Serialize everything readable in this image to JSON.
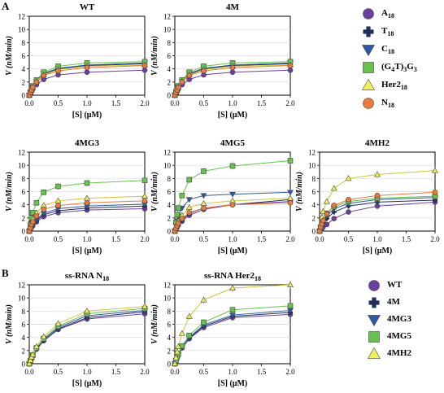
{
  "figure": {
    "panel_labels": [
      "A",
      "B"
    ],
    "legend_top": [
      {
        "label": "A",
        "sub": "18",
        "color": "#6b3fa0",
        "marker": "circle"
      },
      {
        "label": "T",
        "sub": "18",
        "color": "#1f2f57",
        "marker": "cross"
      },
      {
        "label": "C",
        "sub": "18",
        "color": "#2f5aa3",
        "marker": "triangle-down"
      },
      {
        "label": "(G",
        "sub": "4",
        "label2": "T)",
        "sub2": "3",
        "label3": "G",
        "sub3": "3",
        "color": "#66c14e",
        "marker": "square"
      },
      {
        "label": "Her2",
        "sub": "18",
        "color": "#f2f05a",
        "marker": "triangle-up"
      },
      {
        "label": "N",
        "sub": "18",
        "color": "#ea7b3c",
        "marker": "circle"
      }
    ],
    "legend_bottom": [
      {
        "label": "WT",
        "color": "#6b3fa0",
        "marker": "circle"
      },
      {
        "label": "4M",
        "color": "#1f2f57",
        "marker": "cross"
      },
      {
        "label": "4MG3",
        "color": "#2f5aa3",
        "marker": "triangle-down"
      },
      {
        "label": "4MG5",
        "color": "#66c14e",
        "marker": "square"
      },
      {
        "label": "4MH2",
        "color": "#f2f05a",
        "marker": "triangle-up"
      }
    ]
  },
  "chart_data": [
    {
      "type": "line",
      "title": "WT",
      "xlabel": "[S] (μM)",
      "ylabel": "V (nM/min)",
      "xlim": [
        0,
        2
      ],
      "ylim": [
        0,
        12
      ],
      "xticks": [
        "0.0",
        "0.5",
        "1.0",
        "1.5",
        "2.0"
      ],
      "yticks": [
        "0",
        "2",
        "4",
        "6",
        "8",
        "10",
        "12"
      ],
      "x": [
        0,
        0.02,
        0.04,
        0.06,
        0.125,
        0.25,
        0.5,
        1.0,
        2.0
      ],
      "series": [
        {
          "name": "A18",
          "color": "#6b3fa0",
          "marker": "circle",
          "values": [
            0,
            0.3,
            0.6,
            0.9,
            1.6,
            2.4,
            3.1,
            3.5,
            3.8
          ]
        },
        {
          "name": "T18",
          "color": "#1f2f57",
          "marker": "cross",
          "values": [
            0,
            0.4,
            0.8,
            1.2,
            2.1,
            3.2,
            4.0,
            4.5,
            4.8
          ]
        },
        {
          "name": "C18",
          "color": "#2f5aa3",
          "marker": "triangle-down",
          "values": [
            0,
            0.4,
            0.8,
            1.2,
            2.1,
            3.3,
            4.1,
            4.6,
            4.9
          ]
        },
        {
          "name": "(G4T)3G3",
          "color": "#66c14e",
          "marker": "square",
          "values": [
            0,
            0.5,
            0.9,
            1.4,
            2.3,
            3.5,
            4.4,
            4.9,
            5.1
          ]
        },
        {
          "name": "Her218",
          "color": "#f2f05a",
          "marker": "triangle-up",
          "values": [
            0,
            0.4,
            0.8,
            1.3,
            2.1,
            3.1,
            3.9,
            4.4,
            4.6
          ]
        },
        {
          "name": "N18",
          "color": "#ea7b3c",
          "marker": "circle",
          "values": [
            0,
            0.4,
            0.8,
            1.2,
            2.0,
            3.0,
            3.7,
            4.2,
            4.5
          ]
        }
      ]
    },
    {
      "type": "line",
      "title": "4M",
      "xlabel": "[S] (μM)",
      "ylabel": "V (nM/min)",
      "xlim": [
        0,
        2
      ],
      "ylim": [
        0,
        12
      ],
      "xticks": [
        "0.0",
        "0.5",
        "1.0",
        "1.5",
        "2.0"
      ],
      "yticks": [
        "0",
        "2",
        "4",
        "6",
        "8",
        "10",
        "12"
      ],
      "x": [
        0,
        0.02,
        0.04,
        0.06,
        0.125,
        0.25,
        0.5,
        1.0,
        2.0
      ],
      "series": [
        {
          "name": "A18",
          "color": "#6b3fa0",
          "marker": "circle",
          "values": [
            0,
            0.3,
            0.6,
            0.9,
            1.6,
            2.4,
            3.1,
            3.5,
            3.8
          ]
        },
        {
          "name": "T18",
          "color": "#1f2f57",
          "marker": "cross",
          "values": [
            0,
            0.4,
            0.8,
            1.2,
            2.1,
            3.2,
            4.0,
            4.5,
            4.8
          ]
        },
        {
          "name": "C18",
          "color": "#2f5aa3",
          "marker": "triangle-down",
          "values": [
            0,
            0.4,
            0.8,
            1.2,
            2.1,
            3.3,
            4.1,
            4.6,
            4.9
          ]
        },
        {
          "name": "(G4T)3G3",
          "color": "#66c14e",
          "marker": "square",
          "values": [
            0,
            0.5,
            0.9,
            1.4,
            2.3,
            3.5,
            4.4,
            4.9,
            5.1
          ]
        },
        {
          "name": "Her218",
          "color": "#f2f05a",
          "marker": "triangle-up",
          "values": [
            0,
            0.4,
            0.8,
            1.3,
            2.1,
            3.1,
            3.9,
            4.4,
            4.6
          ]
        },
        {
          "name": "N18",
          "color": "#ea7b3c",
          "marker": "circle",
          "values": [
            0,
            0.4,
            0.8,
            1.2,
            2.0,
            3.0,
            3.7,
            4.2,
            4.5
          ]
        }
      ]
    },
    {
      "type": "line",
      "title": "4MG3",
      "xlabel": "[S] (μM)",
      "ylabel": "V (nM/min)",
      "xlim": [
        0,
        2
      ],
      "ylim": [
        0,
        12
      ],
      "xticks": [
        "0.0",
        "0.5",
        "1.0",
        "1.5",
        "2.0"
      ],
      "yticks": [
        "0",
        "2",
        "4",
        "6",
        "8",
        "10",
        "12"
      ],
      "x": [
        0,
        0.02,
        0.04,
        0.06,
        0.125,
        0.25,
        0.5,
        1.0,
        2.0
      ],
      "series": [
        {
          "name": "A18",
          "color": "#6b3fa0",
          "marker": "circle",
          "values": [
            0,
            0.3,
            0.6,
            0.8,
            1.4,
            2.2,
            2.8,
            3.2,
            3.4
          ]
        },
        {
          "name": "T18",
          "color": "#1f2f57",
          "marker": "cross",
          "values": [
            0,
            0.3,
            0.7,
            1.0,
            1.6,
            2.5,
            3.1,
            3.5,
            3.8
          ]
        },
        {
          "name": "C18",
          "color": "#2f5aa3",
          "marker": "triangle-down",
          "values": [
            0,
            0.4,
            0.7,
            1.1,
            1.8,
            2.7,
            3.4,
            3.8,
            4.1
          ]
        },
        {
          "name": "(G4T)3G3",
          "color": "#66c14e",
          "marker": "square",
          "values": [
            0,
            1.0,
            2.0,
            2.8,
            4.3,
            5.9,
            6.8,
            7.3,
            7.7
          ]
        },
        {
          "name": "Her218",
          "color": "#f2f05a",
          "marker": "triangle-up",
          "values": [
            0,
            0.6,
            1.2,
            1.8,
            2.8,
            3.9,
            4.6,
            5.0,
            5.3
          ]
        },
        {
          "name": "N18",
          "color": "#ea7b3c",
          "marker": "circle",
          "values": [
            0,
            0.5,
            1.0,
            1.4,
            2.3,
            3.3,
            3.9,
            4.3,
            4.6
          ]
        }
      ]
    },
    {
      "type": "line",
      "title": "4MG5",
      "xlabel": "[S] (μM)",
      "ylabel": "V (nM/min)",
      "xlim": [
        0,
        2
      ],
      "ylim": [
        0,
        12
      ],
      "xticks": [
        "0.0",
        "0.5",
        "1.0",
        "1.5",
        "2.0"
      ],
      "yticks": [
        "0",
        "2",
        "4",
        "6",
        "8",
        "10",
        "12"
      ],
      "x": [
        0,
        0.02,
        0.04,
        0.06,
        0.125,
        0.25,
        0.5,
        1.0,
        2.0
      ],
      "series": [
        {
          "name": "A18",
          "color": "#6b3fa0",
          "marker": "circle",
          "values": [
            0,
            0.3,
            0.6,
            0.9,
            1.5,
            2.4,
            3.3,
            4.0,
            4.5
          ]
        },
        {
          "name": "T18",
          "color": "#1f2f57",
          "marker": "cross",
          "values": [
            0,
            0.3,
            0.6,
            1.0,
            1.7,
            2.7,
            3.5,
            4.0,
            4.8
          ]
        },
        {
          "name": "C18",
          "color": "#2f5aa3",
          "marker": "triangle-down",
          "values": [
            0,
            0.8,
            1.6,
            2.3,
            3.5,
            4.8,
            5.4,
            5.6,
            5.9
          ]
        },
        {
          "name": "(G4T)3G3",
          "color": "#66c14e",
          "marker": "square",
          "values": [
            0,
            1.3,
            2.5,
            3.5,
            5.4,
            7.8,
            9.1,
            9.9,
            10.7
          ]
        },
        {
          "name": "Her218",
          "color": "#f2f05a",
          "marker": "triangle-up",
          "values": [
            0,
            0.5,
            1.0,
            1.5,
            2.4,
            3.6,
            4.2,
            4.6,
            5.0
          ]
        },
        {
          "name": "N18",
          "color": "#ea7b3c",
          "marker": "circle",
          "values": [
            0,
            0.4,
            0.8,
            1.2,
            1.9,
            2.8,
            3.5,
            4.0,
            4.3
          ]
        }
      ]
    },
    {
      "type": "line",
      "title": "4MH2",
      "xlabel": "[S] (μM)",
      "ylabel": "V (nM/min)",
      "xlim": [
        0,
        2
      ],
      "ylim": [
        0,
        12
      ],
      "xticks": [
        "0.0",
        "0.5",
        "1.0",
        "1.5",
        "2.0"
      ],
      "yticks": [
        "0",
        "2",
        "4",
        "6",
        "8",
        "10",
        "12"
      ],
      "x": [
        0,
        0.02,
        0.04,
        0.06,
        0.125,
        0.25,
        0.5,
        1.0,
        2.0
      ],
      "series": [
        {
          "name": "A18",
          "color": "#6b3fa0",
          "marker": "circle",
          "values": [
            0,
            0.2,
            0.4,
            0.6,
            1.0,
            1.9,
            2.9,
            3.8,
            4.4
          ]
        },
        {
          "name": "T18",
          "color": "#1f2f57",
          "marker": "cross",
          "values": [
            0,
            0.4,
            0.8,
            1.2,
            1.9,
            2.9,
            3.8,
            4.4,
            4.7
          ]
        },
        {
          "name": "C18",
          "color": "#2f5aa3",
          "marker": "triangle-down",
          "values": [
            0,
            0.5,
            1.0,
            1.5,
            2.4,
            3.4,
            4.2,
            4.8,
            5.1
          ]
        },
        {
          "name": "(G4T)3G3",
          "color": "#66c14e",
          "marker": "square",
          "values": [
            0,
            0.6,
            1.2,
            1.7,
            2.7,
            3.7,
            4.5,
            5.0,
            5.3
          ]
        },
        {
          "name": "Her218",
          "color": "#f2f05a",
          "marker": "triangle-up",
          "values": [
            0,
            1.1,
            2.1,
            3.0,
            4.5,
            6.5,
            8.0,
            8.6,
            9.2
          ]
        },
        {
          "name": "N18",
          "color": "#ea7b3c",
          "marker": "circle",
          "values": [
            0,
            0.6,
            1.1,
            1.6,
            2.6,
            3.9,
            4.8,
            5.4,
            5.9
          ]
        }
      ]
    },
    {
      "type": "line",
      "title": "ss-RNA N18",
      "xlabel": "[S] (μM)",
      "ylabel": "V (nM/min)",
      "xlim": [
        0,
        2
      ],
      "ylim": [
        0,
        12
      ],
      "xticks": [
        "0.0",
        "0.5",
        "1.0",
        "1.5",
        "2.0"
      ],
      "yticks": [
        "0",
        "2",
        "4",
        "6",
        "8",
        "10",
        "12"
      ],
      "x": [
        0,
        0.02,
        0.04,
        0.06,
        0.125,
        0.25,
        0.5,
        1.0,
        2.0
      ],
      "series": [
        {
          "name": "WT",
          "color": "#6b3fa0",
          "marker": "circle",
          "values": [
            0,
            0.4,
            0.8,
            1.2,
            2.2,
            3.5,
            5.2,
            6.8,
            7.6
          ]
        },
        {
          "name": "4M",
          "color": "#1f2f57",
          "marker": "cross",
          "values": [
            0,
            0.4,
            0.8,
            1.2,
            2.2,
            3.5,
            5.3,
            7.0,
            7.9
          ]
        },
        {
          "name": "4MG3",
          "color": "#2f5aa3",
          "marker": "triangle-down",
          "values": [
            0,
            0.4,
            0.9,
            1.3,
            2.3,
            3.7,
            5.5,
            7.3,
            8.1
          ]
        },
        {
          "name": "4MG5",
          "color": "#66c14e",
          "marker": "square",
          "values": [
            0,
            0.5,
            0.9,
            1.3,
            2.4,
            3.8,
            5.7,
            7.6,
            8.4
          ]
        },
        {
          "name": "4MH2",
          "color": "#f2f05a",
          "marker": "triangle-up",
          "values": [
            0,
            0.5,
            1.0,
            1.4,
            2.6,
            4.1,
            6.1,
            8.0,
            8.7
          ]
        }
      ]
    },
    {
      "type": "line",
      "title": "ss-RNA Her218",
      "xlabel": "[S] (μM)",
      "ylabel": "V (nM/min)",
      "xlim": [
        0,
        2
      ],
      "ylim": [
        0,
        12
      ],
      "xticks": [
        "0.0",
        "0.5",
        "1.0",
        "1.5",
        "2.0"
      ],
      "yticks": [
        "0",
        "2",
        "4",
        "6",
        "8",
        "10",
        "12"
      ],
      "x": [
        0,
        0.02,
        0.04,
        0.06,
        0.125,
        0.25,
        0.5,
        1.0,
        2.0
      ],
      "series": [
        {
          "name": "WT",
          "color": "#6b3fa0",
          "marker": "circle",
          "values": [
            0,
            0.5,
            0.9,
            1.3,
            2.4,
            3.8,
            5.5,
            7.0,
            7.5
          ]
        },
        {
          "name": "4M",
          "color": "#1f2f57",
          "marker": "cross",
          "values": [
            0,
            0.5,
            0.9,
            1.4,
            2.5,
            3.9,
            5.7,
            7.2,
            7.8
          ]
        },
        {
          "name": "4MG3",
          "color": "#2f5aa3",
          "marker": "triangle-down",
          "values": [
            0,
            0.5,
            1.0,
            1.4,
            2.5,
            4.0,
            5.9,
            7.4,
            8.1
          ]
        },
        {
          "name": "4MG5",
          "color": "#66c14e",
          "marker": "square",
          "values": [
            0,
            0.5,
            1.0,
            1.5,
            2.7,
            4.3,
            6.3,
            8.2,
            8.8
          ]
        },
        {
          "name": "4MH2",
          "color": "#f2f05a",
          "marker": "triangle-up",
          "values": [
            0,
            0.9,
            1.8,
            2.6,
            4.6,
            7.2,
            9.7,
            11.5,
            12.0
          ]
        }
      ]
    }
  ]
}
